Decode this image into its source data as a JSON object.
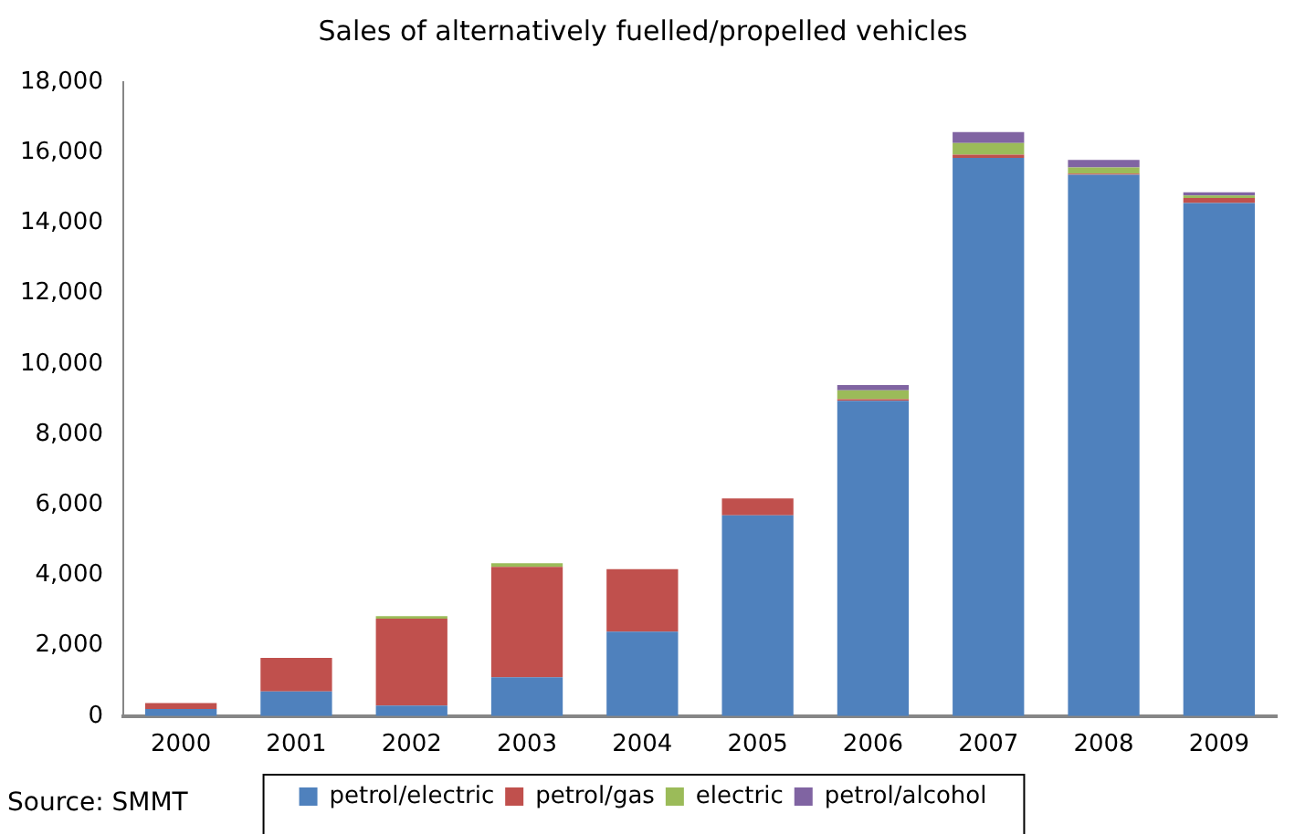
{
  "chart_data": {
    "type": "bar",
    "title": "Sales of alternatively fuelled/propelled vehicles",
    "categories": [
      "2000",
      "2001",
      "2002",
      "2003",
      "2004",
      "2005",
      "2006",
      "2007",
      "2008",
      "2009"
    ],
    "series": [
      {
        "name": "petrol/electric",
        "color": "#4f81bd",
        "values": [
          200,
          700,
          300,
          1100,
          2400,
          5700,
          8950,
          15850,
          15370,
          14570
        ]
      },
      {
        "name": "petrol/gas",
        "color": "#c0504d",
        "values": [
          170,
          950,
          2470,
          3140,
          1770,
          480,
          50,
          90,
          30,
          140
        ]
      },
      {
        "name": "electric",
        "color": "#9bbb59",
        "values": [
          null,
          null,
          70,
          100,
          null,
          null,
          250,
          330,
          180,
          70
        ]
      },
      {
        "name": "petrol/alcohol",
        "color": "#8064a2",
        "values": [
          null,
          null,
          null,
          null,
          null,
          null,
          150,
          310,
          210,
          90
        ]
      }
    ],
    "stacked": true,
    "ylim": [
      0,
      18000
    ],
    "yticks": [
      0,
      {
        "value": 2000,
        "label": "2,000"
      },
      {
        "value": 4000,
        "label": "4,000"
      },
      {
        "value": 6000,
        "label": "6,000"
      },
      {
        "value": 8000,
        "label": "8,000"
      },
      {
        "value": 10000,
        "label": "10,000"
      },
      {
        "value": 12000,
        "label": "12,000"
      },
      {
        "value": 14000,
        "label": "14,000"
      },
      {
        "value": 16000,
        "label": "16,000"
      },
      {
        "value": 18000,
        "label": "18,000"
      }
    ],
    "grid": false,
    "legend": "bottom",
    "annotations": [
      "Source: SMMT"
    ]
  }
}
